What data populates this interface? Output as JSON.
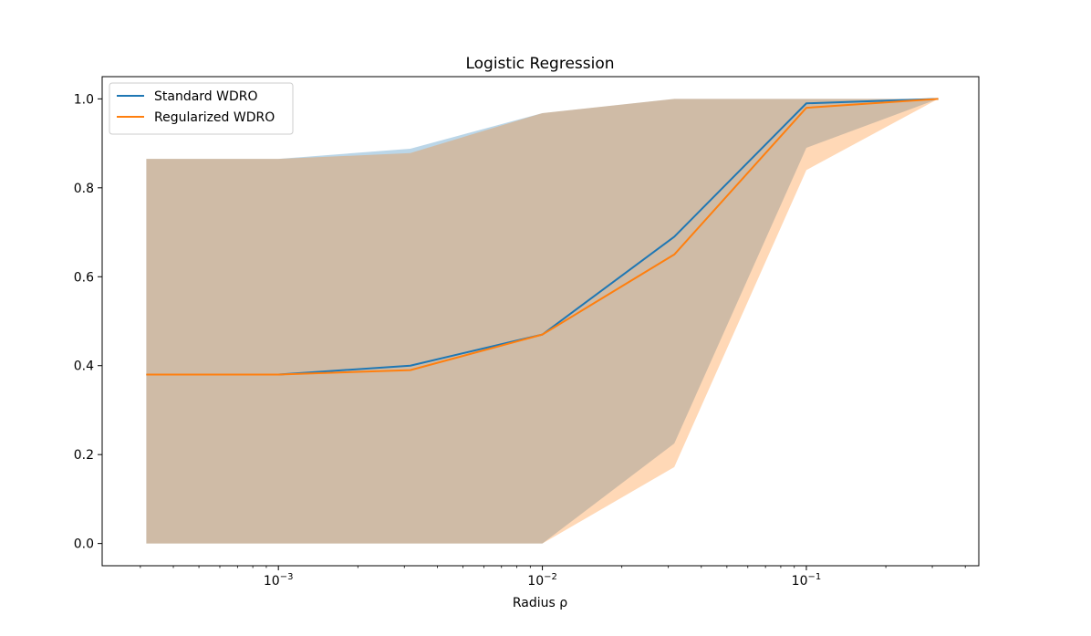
{
  "chart_data": {
    "type": "line",
    "title": "Logistic Regression",
    "xlabel": "Radius ρ",
    "ylabel": "",
    "xscale": "log",
    "xlim": [
      0.000215,
      0.45
    ],
    "ylim": [
      -0.05,
      1.05
    ],
    "x": [
      0.000316,
      0.001,
      0.00316,
      0.01,
      0.0316,
      0.1,
      0.316
    ],
    "x_ticks": [
      {
        "value": 0.001,
        "base": "10",
        "exp": "−3"
      },
      {
        "value": 0.01,
        "base": "10",
        "exp": "−2"
      },
      {
        "value": 0.1,
        "base": "10",
        "exp": "−1"
      }
    ],
    "y_ticks": [
      {
        "value": 0.0,
        "label": "0.0"
      },
      {
        "value": 0.2,
        "label": "0.2"
      },
      {
        "value": 0.4,
        "label": "0.4"
      },
      {
        "value": 0.6,
        "label": "0.6"
      },
      {
        "value": 0.8,
        "label": "0.8"
      },
      {
        "value": 1.0,
        "label": "1.0"
      }
    ],
    "series": [
      {
        "name": "Standard WDRO",
        "color": "#1f77b4",
        "band_color": "#1f77b4",
        "values": [
          0.38,
          0.38,
          0.4,
          0.47,
          0.69,
          0.99,
          1.0
        ],
        "lower": [
          0.0,
          0.0,
          0.0,
          0.0,
          0.225,
          0.89,
          1.0
        ],
        "upper": [
          0.865,
          0.865,
          0.888,
          0.968,
          1.0,
          1.0,
          1.0
        ]
      },
      {
        "name": "Regularized WDRO",
        "color": "#ff7f0e",
        "band_color": "#ff7f0e",
        "values": [
          0.38,
          0.38,
          0.39,
          0.47,
          0.65,
          0.98,
          1.0
        ],
        "lower": [
          0.0,
          0.0,
          0.0,
          0.0,
          0.172,
          0.84,
          1.0
        ],
        "upper": [
          0.865,
          0.865,
          0.878,
          0.968,
          1.0,
          1.0,
          1.0
        ]
      }
    ],
    "legend": "top-left",
    "grid": false
  }
}
